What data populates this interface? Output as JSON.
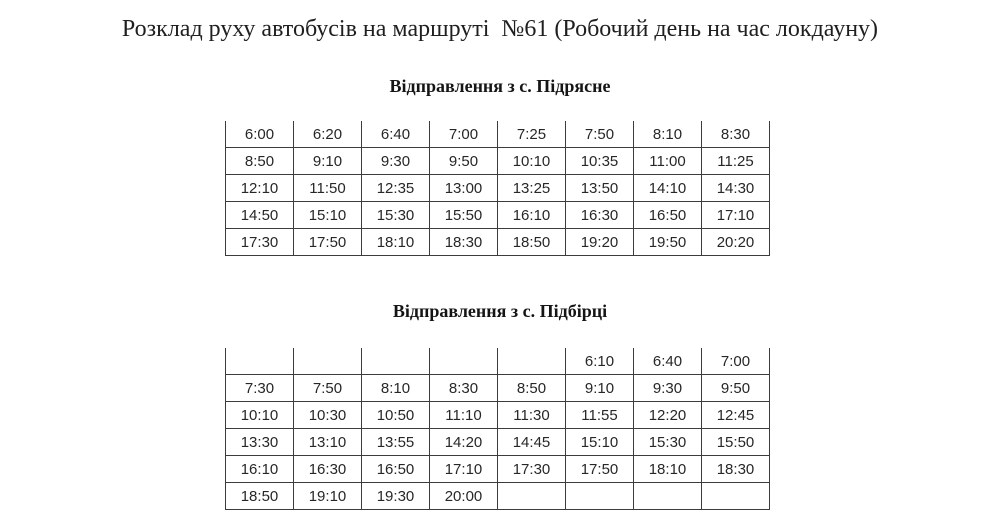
{
  "page": {
    "title": "Розклад руху автобусів на маршруті  №61 (Робочий день на час локдауну)",
    "background_color": "#ffffff",
    "text_color": "#1b1b1b",
    "table_border_color": "#3c3c3c"
  },
  "tables": [
    {
      "title": "Відправлення з с. Підрясне",
      "rows": [
        [
          "6:00",
          "6:20",
          "6:40",
          "7:00",
          "7:25",
          "7:50",
          "8:10",
          "8:30"
        ],
        [
          "8:50",
          "9:10",
          "9:30",
          "9:50",
          "10:10",
          "10:35",
          "11:00",
          "11:25"
        ],
        [
          "12:10",
          "11:50",
          "12:35",
          "13:00",
          "13:25",
          "13:50",
          "14:10",
          "14:30"
        ],
        [
          "14:50",
          "15:10",
          "15:30",
          "15:50",
          "16:10",
          "16:30",
          "16:50",
          "17:10"
        ],
        [
          "17:30",
          "17:50",
          "18:10",
          "18:30",
          "18:50",
          "19:20",
          "19:50",
          "20:20"
        ]
      ]
    },
    {
      "title": "Відправлення з с. Підбірці",
      "rows": [
        [
          "",
          "",
          "",
          "",
          "",
          "6:10",
          "6:40",
          "7:00"
        ],
        [
          "7:30",
          "7:50",
          "8:10",
          "8:30",
          "8:50",
          "9:10",
          "9:30",
          "9:50"
        ],
        [
          "10:10",
          "10:30",
          "10:50",
          "11:10",
          "11:30",
          "11:55",
          "12:20",
          "12:45"
        ],
        [
          "13:30",
          "13:10",
          "13:55",
          "14:20",
          "14:45",
          "15:10",
          "15:30",
          "15:50"
        ],
        [
          "16:10",
          "16:30",
          "16:50",
          "17:10",
          "17:30",
          "17:50",
          "18:10",
          "18:30"
        ],
        [
          "18:50",
          "19:10",
          "19:30",
          "20:00",
          "",
          "",
          "",
          ""
        ]
      ]
    }
  ]
}
